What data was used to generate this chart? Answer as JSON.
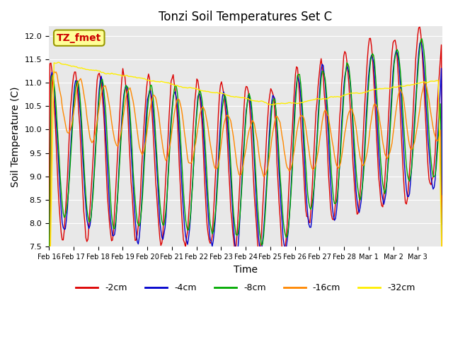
{
  "title": "Tonzi Soil Temperatures Set C",
  "xlabel": "Time",
  "ylabel": "Soil Temperature (C)",
  "ylim": [
    7.5,
    12.2
  ],
  "annotation_text": "TZ_fmet",
  "annotation_color": "#cc0000",
  "annotation_bg": "#ffff99",
  "annotation_border": "#999900",
  "legend_labels": [
    "-2cm",
    "-4cm",
    "-8cm",
    "-16cm",
    "-32cm"
  ],
  "line_colors": [
    "#dd0000",
    "#0000cc",
    "#00aa00",
    "#ff8800",
    "#ffee00"
  ],
  "x_tick_labels": [
    "Feb 16",
    "Feb 17",
    "Feb 18",
    "Feb 19",
    "Feb 20",
    "Feb 21",
    "Feb 22",
    "Feb 23",
    "Feb 24",
    "Feb 25",
    "Feb 26",
    "Feb 27",
    "Feb 28",
    "Mar 1",
    "Mar 2",
    "Mar 3"
  ],
  "n_days": 16,
  "n_points": 384
}
